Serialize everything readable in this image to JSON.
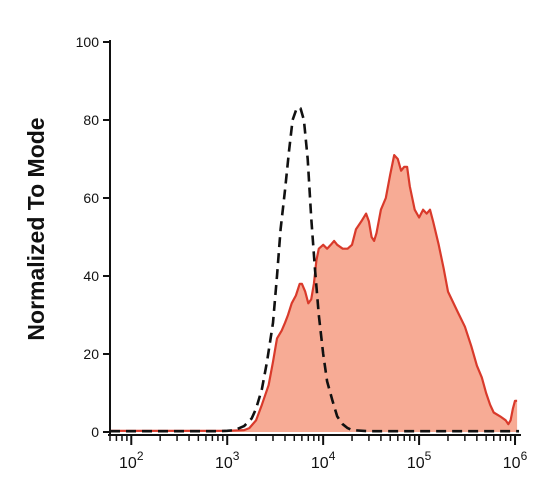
{
  "chart_data": {
    "type": "area",
    "title": "",
    "xlabel": "",
    "ylabel": "Normalized To Mode",
    "x_scale": "log",
    "xlim": [
      60,
      1100000
    ],
    "ylim": [
      0,
      100
    ],
    "y_ticks": [
      "0",
      "20",
      "40",
      "60",
      "80",
      "100"
    ],
    "x_ticks": [
      {
        "base": "10",
        "exp": "2",
        "value": 100
      },
      {
        "base": "10",
        "exp": "3",
        "value": 1000
      },
      {
        "base": "10",
        "exp": "4",
        "value": 10000
      },
      {
        "base": "10",
        "exp": "5",
        "value": 100000
      },
      {
        "base": "10",
        "exp": "6",
        "value": 1000000
      }
    ],
    "grid": false,
    "series": [
      {
        "style": "filled",
        "stroke": "#d93a2b",
        "fill": "#f7ab95",
        "points": [
          [
            60,
            0.3
          ],
          [
            300,
            0.3
          ],
          [
            1000,
            0.3
          ],
          [
            1500,
            0.5
          ],
          [
            1700,
            1
          ],
          [
            2000,
            3
          ],
          [
            2300,
            7
          ],
          [
            2700,
            12
          ],
          [
            3000,
            18
          ],
          [
            3300,
            24
          ],
          [
            3700,
            26
          ],
          [
            4000,
            28
          ],
          [
            4300,
            30
          ],
          [
            4700,
            33
          ],
          [
            5200,
            35
          ],
          [
            5700,
            38
          ],
          [
            6000,
            38
          ],
          [
            6500,
            36
          ],
          [
            7000,
            33
          ],
          [
            7500,
            34
          ],
          [
            8000,
            38
          ],
          [
            8500,
            44
          ],
          [
            9000,
            47
          ],
          [
            10000,
            48
          ],
          [
            11000,
            47
          ],
          [
            12000,
            48
          ],
          [
            13000,
            49
          ],
          [
            14000,
            48
          ],
          [
            16000,
            47
          ],
          [
            18000,
            47
          ],
          [
            20000,
            48
          ],
          [
            22000,
            52
          ],
          [
            25000,
            54
          ],
          [
            28000,
            56
          ],
          [
            30000,
            54
          ],
          [
            32000,
            50
          ],
          [
            34000,
            49
          ],
          [
            36000,
            51
          ],
          [
            40000,
            57
          ],
          [
            45000,
            60
          ],
          [
            50000,
            66
          ],
          [
            55000,
            71
          ],
          [
            60000,
            70
          ],
          [
            65000,
            67
          ],
          [
            70000,
            68
          ],
          [
            75000,
            68
          ],
          [
            80000,
            63
          ],
          [
            90000,
            57
          ],
          [
            100000,
            55
          ],
          [
            110000,
            57
          ],
          [
            120000,
            56
          ],
          [
            130000,
            57
          ],
          [
            140000,
            54
          ],
          [
            160000,
            48
          ],
          [
            180000,
            42
          ],
          [
            200000,
            36
          ],
          [
            250000,
            31
          ],
          [
            300000,
            27
          ],
          [
            350000,
            22
          ],
          [
            400000,
            17
          ],
          [
            450000,
            14
          ],
          [
            500000,
            10
          ],
          [
            550000,
            7
          ],
          [
            600000,
            5
          ],
          [
            700000,
            4
          ],
          [
            800000,
            3
          ],
          [
            850000,
            2
          ],
          [
            900000,
            3
          ],
          [
            950000,
            6
          ],
          [
            1000000,
            8
          ],
          [
            1050000,
            8
          ]
        ]
      },
      {
        "style": "dashed",
        "stroke": "#111111",
        "points": [
          [
            60,
            0.2
          ],
          [
            800,
            0.2
          ],
          [
            1000,
            0.3
          ],
          [
            1200,
            0.5
          ],
          [
            1500,
            1.5
          ],
          [
            1800,
            3.5
          ],
          [
            2000,
            6
          ],
          [
            2300,
            11
          ],
          [
            2600,
            18
          ],
          [
            3000,
            28
          ],
          [
            3300,
            40
          ],
          [
            3600,
            52
          ],
          [
            4000,
            62
          ],
          [
            4400,
            72
          ],
          [
            4800,
            80
          ],
          [
            5300,
            83
          ],
          [
            5800,
            83
          ],
          [
            6300,
            80
          ],
          [
            6900,
            70
          ],
          [
            7500,
            55
          ],
          [
            8200,
            42
          ],
          [
            9000,
            30
          ],
          [
            10000,
            20
          ],
          [
            11000,
            13
          ],
          [
            12500,
            8
          ],
          [
            14000,
            4
          ],
          [
            16000,
            2
          ],
          [
            18000,
            1
          ],
          [
            20000,
            0.5
          ],
          [
            30000,
            0.2
          ],
          [
            1100000,
            0.2
          ]
        ]
      }
    ]
  }
}
